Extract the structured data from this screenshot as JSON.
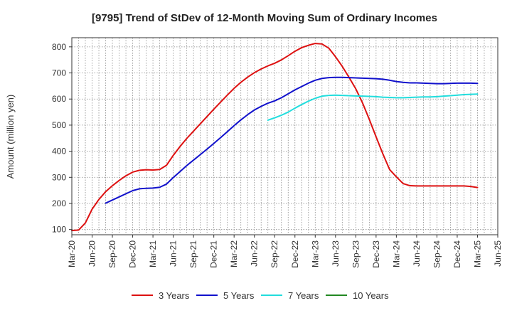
{
  "chart_data": {
    "type": "line",
    "title": "[9795]  Trend of StDev of 12-Month Moving Sum of Ordinary Incomes",
    "xlabel": "",
    "ylabel": "Amount (million yen)",
    "ylim": [
      80,
      835
    ],
    "yticks": [
      100,
      200,
      300,
      400,
      500,
      600,
      700,
      800
    ],
    "x_ticks": [
      "Mar-20",
      "Jun-20",
      "Sep-20",
      "Dec-20",
      "Mar-21",
      "Jun-21",
      "Sep-21",
      "Dec-21",
      "Mar-22",
      "Jun-22",
      "Sep-22",
      "Dec-22",
      "Mar-23",
      "Jun-23",
      "Sep-23",
      "Dec-23",
      "Mar-24",
      "Jun-24",
      "Sep-24",
      "Dec-24",
      "Mar-25",
      "Jun-25"
    ],
    "grid": true,
    "legend_position": "bottom",
    "series": [
      {
        "name": "3 Years",
        "color": "#dd1111",
        "points": [
          [
            "Mar-20",
            96
          ],
          [
            "Apr-20",
            98
          ],
          [
            "May-20",
            125
          ],
          [
            "Jun-20",
            178
          ],
          [
            "Jul-20",
            215
          ],
          [
            "Aug-20",
            245
          ],
          [
            "Sep-20",
            268
          ],
          [
            "Oct-20",
            288
          ],
          [
            "Nov-20",
            306
          ],
          [
            "Dec-20",
            320
          ],
          [
            "Jan-21",
            327
          ],
          [
            "Feb-21",
            329
          ],
          [
            "Mar-21",
            328
          ],
          [
            "Apr-21",
            330
          ],
          [
            "May-21",
            346
          ],
          [
            "Jun-21",
            384
          ],
          [
            "Jul-21",
            418
          ],
          [
            "Aug-21",
            449
          ],
          [
            "Sep-21",
            477
          ],
          [
            "Oct-21",
            505
          ],
          [
            "Nov-21",
            533
          ],
          [
            "Dec-21",
            561
          ],
          [
            "Jan-22",
            588
          ],
          [
            "Feb-22",
            615
          ],
          [
            "Mar-22",
            641
          ],
          [
            "Apr-22",
            664
          ],
          [
            "May-22",
            684
          ],
          [
            "Jun-22",
            701
          ],
          [
            "Jul-22",
            715
          ],
          [
            "Aug-22",
            727
          ],
          [
            "Sep-22",
            737
          ],
          [
            "Oct-22",
            750
          ],
          [
            "Nov-22",
            766
          ],
          [
            "Dec-22",
            783
          ],
          [
            "Jan-23",
            797
          ],
          [
            "Feb-23",
            806
          ],
          [
            "Mar-23",
            813
          ],
          [
            "Apr-23",
            811
          ],
          [
            "May-23",
            795
          ],
          [
            "Jun-23",
            762
          ],
          [
            "Jul-23",
            725
          ],
          [
            "Aug-23",
            683
          ],
          [
            "Sep-23",
            639
          ],
          [
            "Oct-23",
            585
          ],
          [
            "Nov-23",
            522
          ],
          [
            "Dec-23",
            455
          ],
          [
            "Jan-24",
            390
          ],
          [
            "Feb-24",
            330
          ],
          [
            "Mar-24",
            302
          ],
          [
            "Apr-24",
            276
          ],
          [
            "May-24",
            268
          ],
          [
            "Jun-24",
            267
          ],
          [
            "Jul-24",
            267
          ],
          [
            "Aug-24",
            267
          ],
          [
            "Sep-24",
            267
          ],
          [
            "Oct-24",
            267
          ],
          [
            "Nov-24",
            267
          ],
          [
            "Dec-24",
            267
          ],
          [
            "Jan-25",
            267
          ],
          [
            "Feb-25",
            265
          ],
          [
            "Mar-25",
            261
          ]
        ]
      },
      {
        "name": "5 Years",
        "color": "#1111cc",
        "points": [
          [
            "Aug-20",
            201
          ],
          [
            "Sep-20",
            213
          ],
          [
            "Oct-20",
            225
          ],
          [
            "Nov-20",
            237
          ],
          [
            "Dec-20",
            249
          ],
          [
            "Jan-21",
            256
          ],
          [
            "Feb-21",
            258
          ],
          [
            "Mar-21",
            259
          ],
          [
            "Apr-21",
            262
          ],
          [
            "May-21",
            274
          ],
          [
            "Jun-21",
            299
          ],
          [
            "Jul-21",
            322
          ],
          [
            "Aug-21",
            345
          ],
          [
            "Sep-21",
            366
          ],
          [
            "Oct-21",
            387
          ],
          [
            "Nov-21",
            408
          ],
          [
            "Dec-21",
            430
          ],
          [
            "Jan-22",
            452
          ],
          [
            "Feb-22",
            475
          ],
          [
            "Mar-22",
            498
          ],
          [
            "Apr-22",
            520
          ],
          [
            "May-22",
            540
          ],
          [
            "Jun-22",
            558
          ],
          [
            "Jul-22",
            572
          ],
          [
            "Aug-22",
            584
          ],
          [
            "Sep-22",
            593
          ],
          [
            "Oct-22",
            605
          ],
          [
            "Nov-22",
            620
          ],
          [
            "Dec-22",
            635
          ],
          [
            "Jan-23",
            648
          ],
          [
            "Feb-23",
            661
          ],
          [
            "Mar-23",
            672
          ],
          [
            "Apr-23",
            679
          ],
          [
            "May-23",
            682
          ],
          [
            "Jun-23",
            683
          ],
          [
            "Jul-23",
            683
          ],
          [
            "Aug-23",
            682
          ],
          [
            "Sep-23",
            681
          ],
          [
            "Oct-23",
            680
          ],
          [
            "Nov-23",
            679
          ],
          [
            "Dec-23",
            678
          ],
          [
            "Jan-24",
            676
          ],
          [
            "Feb-24",
            672
          ],
          [
            "Mar-24",
            667
          ],
          [
            "Apr-24",
            664
          ],
          [
            "May-24",
            662
          ],
          [
            "Jun-24",
            662
          ],
          [
            "Jul-24",
            661
          ],
          [
            "Aug-24",
            660
          ],
          [
            "Sep-24",
            659
          ],
          [
            "Oct-24",
            659
          ],
          [
            "Nov-24",
            660
          ],
          [
            "Dec-24",
            661
          ],
          [
            "Jan-25",
            661
          ],
          [
            "Feb-25",
            661
          ],
          [
            "Mar-25",
            660
          ]
        ]
      },
      {
        "name": "7 Years",
        "color": "#22dddd",
        "points": [
          [
            "Aug-22",
            519
          ],
          [
            "Sep-22",
            528
          ],
          [
            "Oct-22",
            538
          ],
          [
            "Nov-22",
            550
          ],
          [
            "Dec-22",
            565
          ],
          [
            "Jan-23",
            579
          ],
          [
            "Feb-23",
            592
          ],
          [
            "Mar-23",
            603
          ],
          [
            "Apr-23",
            611
          ],
          [
            "May-23",
            614
          ],
          [
            "Jun-23",
            615
          ],
          [
            "Jul-23",
            614
          ],
          [
            "Aug-23",
            613
          ],
          [
            "Sep-23",
            612
          ],
          [
            "Oct-23",
            611
          ],
          [
            "Nov-23",
            610
          ],
          [
            "Dec-23",
            609
          ],
          [
            "Jan-24",
            607
          ],
          [
            "Feb-24",
            606
          ],
          [
            "Mar-24",
            605
          ],
          [
            "Apr-24",
            605
          ],
          [
            "May-24",
            606
          ],
          [
            "Jun-24",
            607
          ],
          [
            "Jul-24",
            608
          ],
          [
            "Aug-24",
            608
          ],
          [
            "Sep-24",
            609
          ],
          [
            "Oct-24",
            611
          ],
          [
            "Nov-24",
            613
          ],
          [
            "Dec-24",
            615
          ],
          [
            "Jan-25",
            617
          ],
          [
            "Feb-25",
            618
          ],
          [
            "Mar-25",
            619
          ]
        ]
      },
      {
        "name": "10 Years",
        "color": "#228822",
        "points": []
      }
    ]
  }
}
